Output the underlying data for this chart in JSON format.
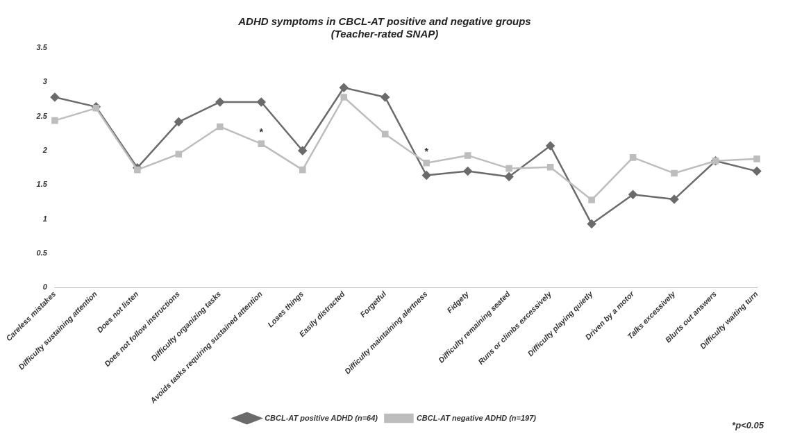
{
  "chart_data": {
    "type": "line",
    "title": "ADHD symptoms in CBCL-AT positive and negative groups\n(Teacher-rated SNAP)",
    "categories": [
      "Careless mistakes",
      "Difficulty sustaining attention",
      "Does not listen",
      "Does not follow instructions",
      "Difficulty organizing tasks",
      "Avoids tasks requiring sustained attention",
      "Loses things",
      "Easily distracted",
      "Forgetful",
      "Difficulty maintaining alertness",
      "Fidgety",
      "Difficulty remaining seated",
      "Runs or climbs excessively",
      "Difficulty playing quietly",
      "Driven by a motor",
      "Talks excessively",
      "Blurts out answers",
      "Difficulty waiting turn"
    ],
    "series": [
      {
        "name": "CBCL-AT positive ADHD (n=64)",
        "color": "#6b6b6b",
        "marker": "diamond",
        "values": [
          2.78,
          2.64,
          1.75,
          2.42,
          2.71,
          2.71,
          2.0,
          2.92,
          2.78,
          1.64,
          1.7,
          1.62,
          2.07,
          0.93,
          1.36,
          1.29,
          1.85,
          1.7
        ]
      },
      {
        "name": "CBCL-AT negative ADHD (n=197)",
        "color": "#bdbdbd",
        "marker": "square",
        "values": [
          2.44,
          2.62,
          1.72,
          1.95,
          2.35,
          2.1,
          1.72,
          2.78,
          2.24,
          1.82,
          1.93,
          1.74,
          1.76,
          1.28,
          1.9,
          1.67,
          1.85,
          1.88
        ]
      }
    ],
    "ylim": [
      0,
      3.5
    ],
    "yticks": [
      0,
      0.5,
      1,
      1.5,
      2,
      2.5,
      3,
      3.5
    ],
    "grid": false,
    "legend": "bottom",
    "annotations": [
      {
        "text": "*",
        "x": "Avoids tasks requiring sustained attention",
        "y": 2.1
      },
      {
        "text": "*",
        "x": "Difficulty maintaining alertness",
        "y": 1.82
      },
      "*p<0.05"
    ]
  }
}
